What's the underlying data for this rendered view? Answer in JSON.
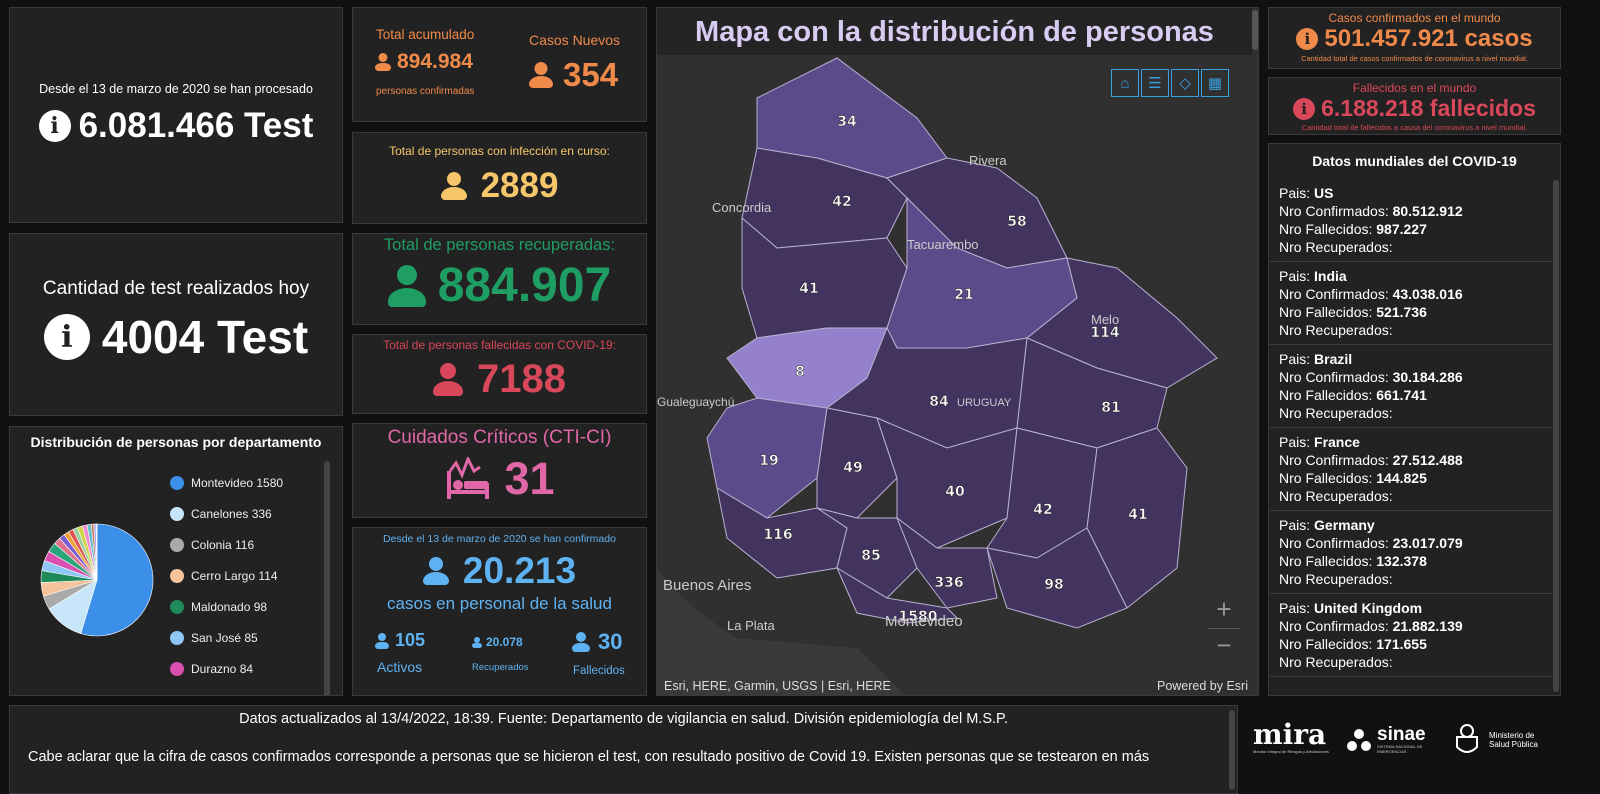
{
  "tests_total": {
    "caption": "Desde el 13 de marzo de 2020 se han procesado",
    "value": "6.081.466 Test"
  },
  "tests_today": {
    "caption": "Cantidad de test realizados hoy",
    "value": "4004 Test"
  },
  "acumulado": {
    "label": "Total acumulado",
    "value": "894.984",
    "sub": "personas confirmadas",
    "new_label": "Casos Nuevos",
    "new_value": "354"
  },
  "en_curso": {
    "label": "Total de personas con infección en curso:",
    "value": "2889"
  },
  "recuperadas": {
    "label": "Total de personas recuperadas:",
    "value": "884.907"
  },
  "fallecidas": {
    "label": "Total de personas fallecidas con COVID-19:",
    "value": "7188"
  },
  "cti": {
    "label": "Cuidados Críticos (CTI-CI)",
    "value": "31"
  },
  "salud": {
    "caption": "Desde el 13 de marzo de 2020 se han confirmado",
    "value": "20.213",
    "sub": "casos en personal de la salud",
    "activos_value": "105",
    "activos_label": "Activos",
    "recuperados_value": "20.078",
    "recuperados_label": "Recuperados",
    "fallecidos_value": "30",
    "fallecidos_label": "Fallecidos"
  },
  "departamentos": {
    "title": "Distribución de personas por departamento",
    "items": [
      {
        "label": "Montevideo  1580",
        "color": "#3b8fe8"
      },
      {
        "label": "Canelones  336",
        "color": "#c8e6fa"
      },
      {
        "label": "Colonia  116",
        "color": "#aaaaaa"
      },
      {
        "label": "Cerro Largo  114",
        "color": "#f7c39a"
      },
      {
        "label": "Maldonado  98",
        "color": "#1e8a5a"
      },
      {
        "label": "San José  85",
        "color": "#8fc6f5"
      },
      {
        "label": "Durazno  84",
        "color": "#d94fb0"
      }
    ],
    "pie": [
      {
        "name": "Montevideo",
        "value": 1580,
        "color": "#3b8fe8"
      },
      {
        "name": "Canelones",
        "value": 336,
        "color": "#c8e6fa"
      },
      {
        "name": "Colonia",
        "value": 116,
        "color": "#aaaaaa"
      },
      {
        "name": "Cerro Largo",
        "value": 114,
        "color": "#f7c39a"
      },
      {
        "name": "Maldonado",
        "value": 98,
        "color": "#1e8a5a"
      },
      {
        "name": "San José",
        "value": 85,
        "color": "#8fc6f5"
      },
      {
        "name": "Durazno",
        "value": 84,
        "color": "#d94fb0"
      },
      {
        "name": "other-1",
        "value": 81,
        "color": "#2aa57a"
      },
      {
        "name": "other-2",
        "value": 58,
        "color": "#e0708a"
      },
      {
        "name": "other-3",
        "value": 49,
        "color": "#7b5ccf"
      },
      {
        "name": "other-4",
        "value": 42,
        "color": "#f0a030"
      },
      {
        "name": "other-5",
        "value": 42,
        "color": "#e05050"
      },
      {
        "name": "other-6",
        "value": 41,
        "color": "#9ad0a0"
      },
      {
        "name": "other-7",
        "value": 41,
        "color": "#d0d040"
      },
      {
        "name": "other-8",
        "value": 40,
        "color": "#f08ad0"
      },
      {
        "name": "other-9",
        "value": 34,
        "color": "#60c0d0"
      },
      {
        "name": "other-10",
        "value": 21,
        "color": "#c07040"
      },
      {
        "name": "other-11",
        "value": 19,
        "color": "#a0a0f0"
      },
      {
        "name": "other-12",
        "value": 8,
        "color": "#f0f0f0"
      }
    ]
  },
  "map": {
    "title": "Mapa con la distribución de personas",
    "attribution": "Esri, HERE, Garmin, USGS | Esri, HERE",
    "powered": "Powered by Esri",
    "places": [
      "Concordia",
      "Rivera",
      "Tacuarembo",
      "Melo",
      "Gualeguaychú",
      "URUGUAY",
      "Buenos Aires",
      "La Plata",
      "Montevideo"
    ],
    "zoom_in": "+",
    "zoom_out": "−",
    "counts": [
      "34",
      "42",
      "58",
      "41",
      "21",
      "114",
      "8",
      "84",
      "81",
      "19",
      "49",
      "40",
      "42",
      "41",
      "116",
      "85",
      "336",
      "98",
      "1580"
    ]
  },
  "mundo_casos": {
    "label": "Casos confirmados en el mundo",
    "value": "501.457.921 casos",
    "sub": "Cantidad total de casos confirmados de coronavirus a nivel mundial."
  },
  "mundo_fallecidos": {
    "label": "Fallecidos en el mundo",
    "value": "6.188.218 fallecidos",
    "sub": "Cantidad total de fallecidos a causa del coronavirus a nivel mundial."
  },
  "mundiales": {
    "title": "Datos mundiales del COVID-19",
    "pais_label": "Pais:",
    "conf_label": "Nro Confirmados:",
    "fall_label": "Nro Fallecidos:",
    "rec_label": "Nro Recuperados:",
    "items": [
      {
        "pais": "US",
        "confirmados": "80.512.912",
        "fallecidos": "987.227"
      },
      {
        "pais": "India",
        "confirmados": "43.038.016",
        "fallecidos": "521.736"
      },
      {
        "pais": "Brazil",
        "confirmados": "30.184.286",
        "fallecidos": "661.741"
      },
      {
        "pais": "France",
        "confirmados": "27.512.488",
        "fallecidos": "144.825"
      },
      {
        "pais": "Germany",
        "confirmados": "23.017.079",
        "fallecidos": "132.378"
      },
      {
        "pais": "United Kingdom",
        "confirmados": "21.882.139",
        "fallecidos": "171.655"
      }
    ]
  },
  "footer": {
    "line1": "Datos actualizados al 13/4/2022, 18:39. Fuente: Departamento de vigilancia en salud. División epidemiología del M.S.P.",
    "line2": "Cabe aclarar que la cifra de casos confirmados corresponde a personas que se hicieron el test, con resultado positivo de Covid 19. Existen personas que se testearon en más",
    "logo_mira": "mira",
    "logo_mira_sub": "Monitor Integral de Riesgos y Afectaciones",
    "logo_sinae": "sinae",
    "logo_sinae_sub": "SISTEMA NACIONAL DE EMERGENCIAS",
    "logo_msp": "Ministerio de Salud Pública"
  }
}
